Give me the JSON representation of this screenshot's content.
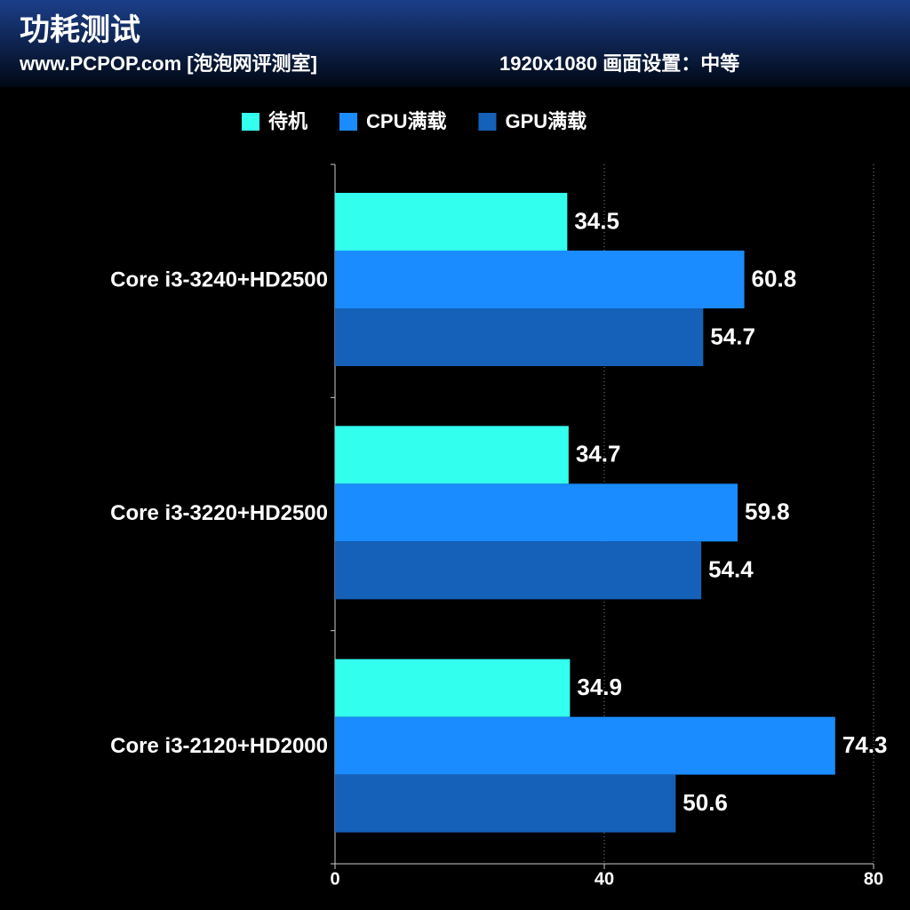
{
  "chart_data": {
    "type": "hbar",
    "title": "功耗测试",
    "subtitle": "www.PCPOP.com [泡泡网评测室]",
    "note": "1920x1080 画面设置：中等",
    "categories": [
      "Core i3-3240+HD2500",
      "Core i3-3220+HD2500",
      "Core i3-2120+HD2000"
    ],
    "series": [
      {
        "name": "待机",
        "color": "#33ffee",
        "values": [
          34.5,
          34.7,
          34.9
        ]
      },
      {
        "name": "CPU满载",
        "color": "#1a8cff",
        "values": [
          60.8,
          59.8,
          74.3
        ]
      },
      {
        "name": "GPU满载",
        "color": "#1560b8",
        "values": [
          54.7,
          54.4,
          50.6
        ]
      }
    ],
    "xlim": [
      0,
      80
    ],
    "xticks": [
      0,
      40,
      80
    ],
    "grid": true
  }
}
